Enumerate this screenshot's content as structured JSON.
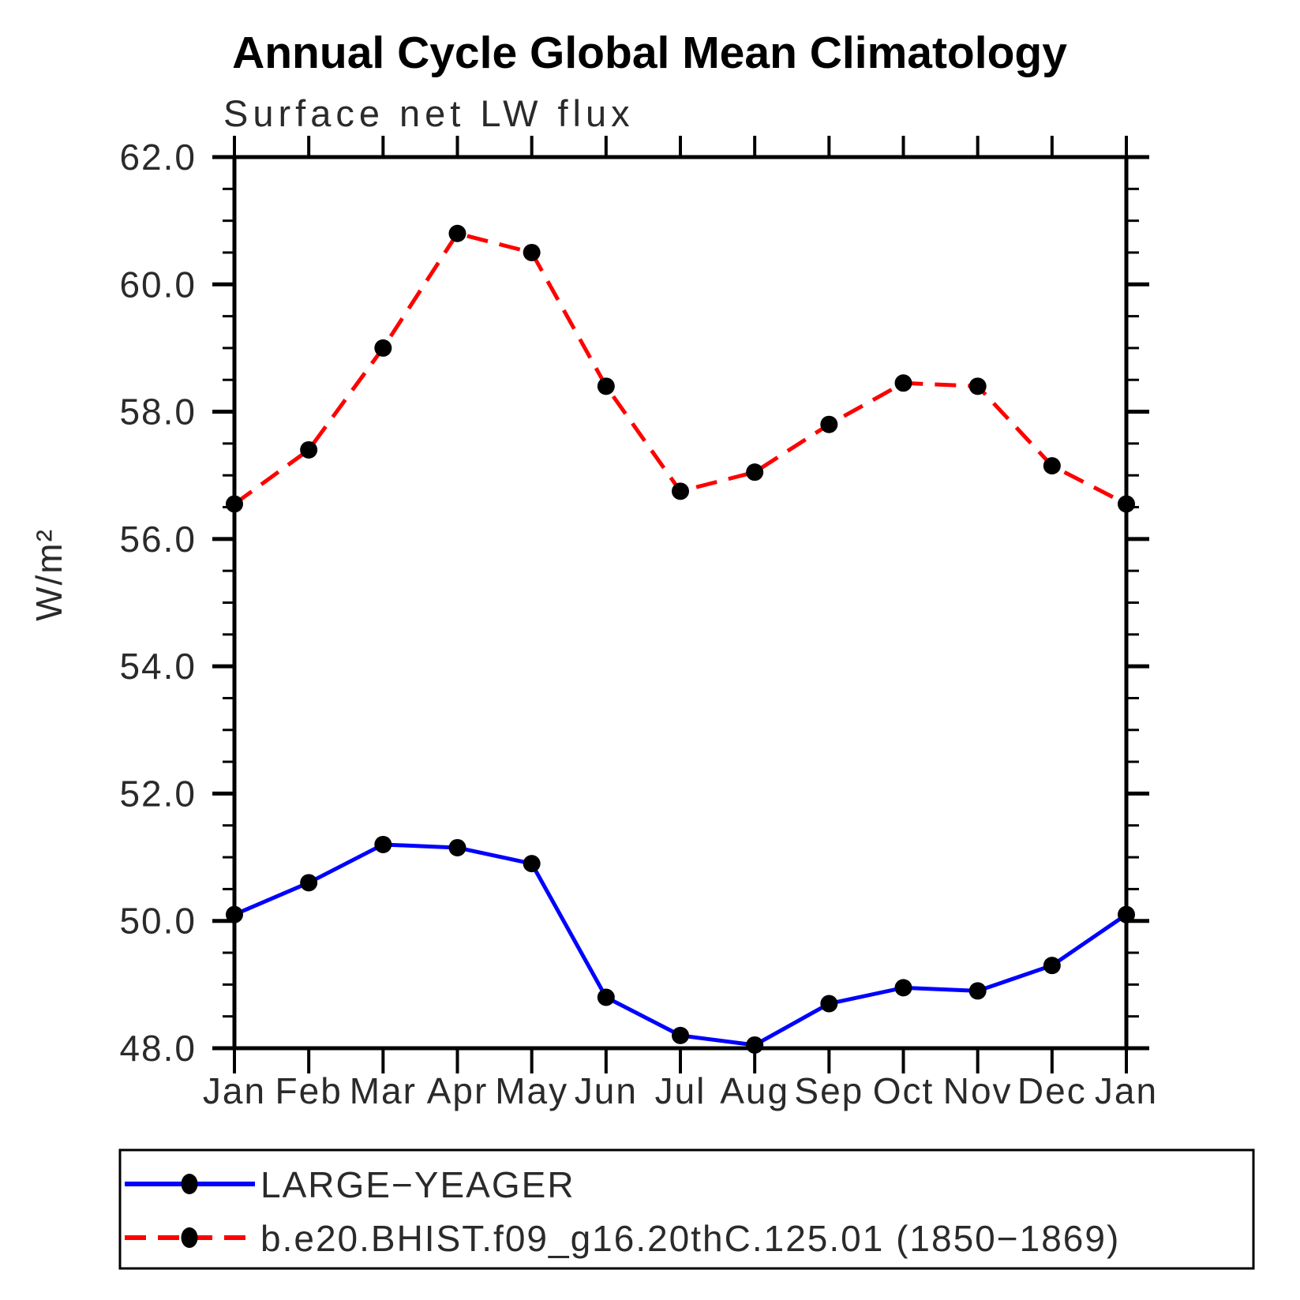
{
  "figure": {
    "background": "#ffffff",
    "frame_color": "#000000"
  },
  "chart_data": {
    "type": "line",
    "title": "Annual Cycle Global Mean Climatology",
    "subtitle": "Surface net LW flux",
    "ylabel": "W/m²",
    "xlabel": "",
    "categories": [
      "Jan",
      "Feb",
      "Mar",
      "Apr",
      "May",
      "Jun",
      "Jul",
      "Aug",
      "Sep",
      "Oct",
      "Nov",
      "Dec",
      "Jan"
    ],
    "ylim": [
      48.0,
      62.0
    ],
    "ytick_major_step": 2.0,
    "ytick_minor_step": 0.5,
    "ytick_labels": [
      "48.0",
      "50.0",
      "52.0",
      "54.0",
      "56.0",
      "58.0",
      "60.0",
      "62.0"
    ],
    "grid": false,
    "legend_position": "bottom-left-box",
    "series": [
      {
        "name": "LARGE−YEAGER",
        "color": "#0000ff",
        "line_style": "solid",
        "marker": "filled-circle",
        "marker_color": "#000000",
        "values": [
          50.1,
          50.6,
          51.2,
          51.15,
          50.9,
          48.8,
          48.2,
          48.05,
          48.7,
          48.95,
          48.9,
          49.3,
          50.1
        ]
      },
      {
        "name": "b.e20.BHIST.f09_g16.20thC.125.01 (1850−1869)",
        "color": "#ff0000",
        "line_style": "dashed",
        "marker": "filled-circle",
        "marker_color": "#000000",
        "values": [
          56.55,
          57.4,
          59.0,
          60.8,
          60.5,
          58.4,
          56.75,
          57.05,
          57.8,
          58.45,
          58.4,
          57.15,
          56.55
        ]
      }
    ]
  }
}
